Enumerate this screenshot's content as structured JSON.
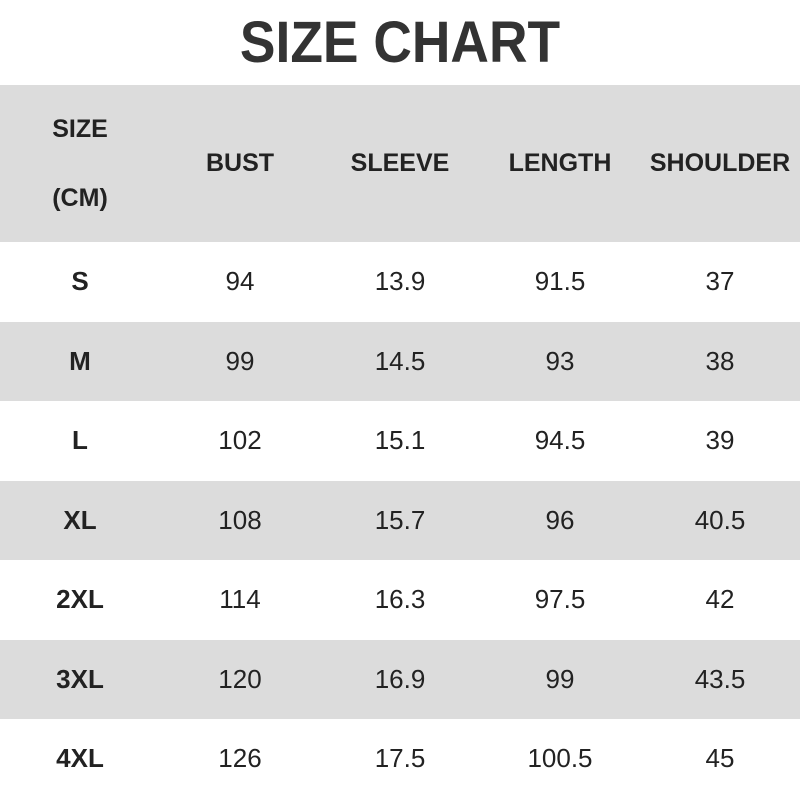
{
  "title": "SIZE CHART",
  "header": {
    "size_line1": "SIZE",
    "size_line2": "(CM)",
    "columns": [
      "BUST",
      "SLEEVE",
      "LENGTH",
      "SHOULDER"
    ]
  },
  "rows": [
    {
      "size": "S",
      "values": [
        "94",
        "13.9",
        "91.5",
        "37"
      ]
    },
    {
      "size": "M",
      "values": [
        "99",
        "14.5",
        "93",
        "38"
      ]
    },
    {
      "size": "L",
      "values": [
        "102",
        "15.1",
        "94.5",
        "39"
      ]
    },
    {
      "size": "XL",
      "values": [
        "108",
        "15.7",
        "96",
        "40.5"
      ]
    },
    {
      "size": "2XL",
      "values": [
        "114",
        "16.3",
        "97.5",
        "42"
      ]
    },
    {
      "size": "3XL",
      "values": [
        "120",
        "16.9",
        "99",
        "43.5"
      ]
    },
    {
      "size": "4XL",
      "values": [
        "126",
        "17.5",
        "100.5",
        "45"
      ]
    }
  ]
}
